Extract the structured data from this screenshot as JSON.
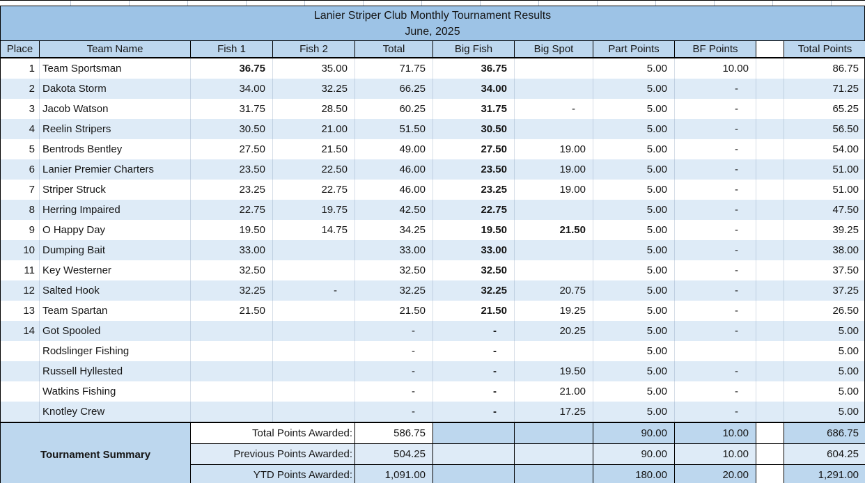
{
  "title": {
    "line1": "Lanier Striper Club Monthly Tournament Results",
    "line2": "June, 2025"
  },
  "columns": [
    "Place",
    "Team Name",
    "Fish 1",
    "Fish 2",
    "Total",
    "Big Fish",
    "Big Spot",
    "Part Points",
    "BF Points",
    "",
    "Total Points"
  ],
  "rows": [
    {
      "place": "1",
      "team": "Team Sportsman",
      "fish1": "36.75",
      "fish1_bold": true,
      "fish2": "35.00",
      "total": "71.75",
      "big_fish": "36.75",
      "big_spot": "",
      "part_points": "5.00",
      "bf_points": "10.00",
      "total_points": "86.75"
    },
    {
      "place": "2",
      "team": "Dakota Storm",
      "fish1": "34.00",
      "fish2": "32.25",
      "total": "66.25",
      "big_fish": "34.00",
      "big_spot": "",
      "part_points": "5.00",
      "bf_points": "-",
      "total_points": "71.25"
    },
    {
      "place": "3",
      "team": "Jacob Watson",
      "fish1": "31.75",
      "fish2": "28.50",
      "total": "60.25",
      "big_fish": "31.75",
      "big_spot": "-",
      "part_points": "5.00",
      "bf_points": "-",
      "total_points": "65.25"
    },
    {
      "place": "4",
      "team": "Reelin Stripers",
      "fish1": "30.50",
      "fish2": "21.00",
      "total": "51.50",
      "big_fish": "30.50",
      "big_spot": "",
      "part_points": "5.00",
      "bf_points": "-",
      "total_points": "56.50"
    },
    {
      "place": "5",
      "team": "Bentrods Bentley",
      "fish1": "27.50",
      "fish2": "21.50",
      "total": "49.00",
      "big_fish": "27.50",
      "big_spot": "19.00",
      "part_points": "5.00",
      "bf_points": "-",
      "total_points": "54.00"
    },
    {
      "place": "6",
      "team": "Lanier Premier Charters",
      "fish1": "23.50",
      "fish2": "22.50",
      "total": "46.00",
      "big_fish": "23.50",
      "big_spot": "19.00",
      "part_points": "5.00",
      "bf_points": "-",
      "total_points": "51.00"
    },
    {
      "place": "7",
      "team": "Striper Struck",
      "fish1": "23.25",
      "fish2": "22.75",
      "total": "46.00",
      "big_fish": "23.25",
      "big_spot": "19.00",
      "part_points": "5.00",
      "bf_points": "-",
      "total_points": "51.00"
    },
    {
      "place": "8",
      "team": "Herring Impaired",
      "fish1": "22.75",
      "fish2": "19.75",
      "total": "42.50",
      "big_fish": "22.75",
      "big_spot": "",
      "part_points": "5.00",
      "bf_points": "-",
      "total_points": "47.50"
    },
    {
      "place": "9",
      "team": "O Happy Day",
      "fish1": "19.50",
      "fish2": "14.75",
      "total": "34.25",
      "big_fish": "19.50",
      "big_spot": "21.50",
      "big_spot_bold": true,
      "part_points": "5.00",
      "bf_points": "-",
      "total_points": "39.25"
    },
    {
      "place": "10",
      "team": "Dumping Bait",
      "fish1": "33.00",
      "fish2": "",
      "total": "33.00",
      "big_fish": "33.00",
      "big_spot": "",
      "part_points": "5.00",
      "bf_points": "-",
      "total_points": "38.00"
    },
    {
      "place": "11",
      "team": "Key Westerner",
      "fish1": "32.50",
      "fish2": "",
      "total": "32.50",
      "big_fish": "32.50",
      "big_spot": "",
      "part_points": "5.00",
      "bf_points": "-",
      "total_points": "37.50"
    },
    {
      "place": "12",
      "team": "Salted Hook",
      "fish1": "32.25",
      "fish2": "-",
      "total": "32.25",
      "big_fish": "32.25",
      "big_spot": "20.75",
      "part_points": "5.00",
      "bf_points": "-",
      "total_points": "37.25"
    },
    {
      "place": "13",
      "team": "Team Spartan",
      "fish1": "21.50",
      "fish2": "",
      "total": "21.50",
      "big_fish": "21.50",
      "big_spot": "19.25",
      "part_points": "5.00",
      "bf_points": "-",
      "total_points": "26.50"
    },
    {
      "place": "14",
      "team": "Got Spooled",
      "fish1": "",
      "fish2": "",
      "total": "-",
      "big_fish": "-",
      "big_spot": "20.25",
      "part_points": "5.00",
      "bf_points": "-",
      "total_points": "5.00"
    },
    {
      "place": "",
      "team": "Rodslinger Fishing",
      "fish1": "",
      "fish2": "",
      "total": "-",
      "big_fish": "-",
      "big_spot": "",
      "part_points": "5.00",
      "bf_points": "",
      "total_points": "5.00"
    },
    {
      "place": "",
      "team": "Russell Hyllested",
      "fish1": "",
      "fish2": "",
      "total": "-",
      "big_fish": "-",
      "big_spot": "19.50",
      "part_points": "5.00",
      "bf_points": "-",
      "total_points": "5.00"
    },
    {
      "place": "",
      "team": "Watkins Fishing",
      "fish1": "",
      "fish2": "",
      "total": "-",
      "big_fish": "-",
      "big_spot": "21.00",
      "part_points": "5.00",
      "bf_points": "-",
      "total_points": "5.00"
    },
    {
      "place": "",
      "team": "Knotley Crew",
      "fish1": "",
      "fish2": "",
      "total": "-",
      "big_fish": "-",
      "big_spot": "17.25",
      "part_points": "5.00",
      "bf_points": "-",
      "total_points": "5.00"
    }
  ],
  "summary": {
    "title": "Tournament Summary",
    "rows": [
      {
        "label": "Total Points Awarded:",
        "value": "586.75",
        "part_points": "90.00",
        "bf_points": "10.00",
        "total_points": "686.75"
      },
      {
        "label": "Previous Points Awarded:",
        "value": "504.25",
        "part_points": "90.00",
        "bf_points": "10.00",
        "total_points": "604.25"
      },
      {
        "label": "YTD Points Awarded:",
        "value": "1,091.00",
        "part_points": "180.00",
        "bf_points": "20.00",
        "total_points": "1,291.00"
      }
    ]
  },
  "colors": {
    "title_bg": "#9DC3E6",
    "header_bg": "#BDD7EE",
    "band_bg": "#DEEBF7",
    "white": "#FFFFFF",
    "summary_dark": "#BDD7EE",
    "summary_light": "#DEEBF7",
    "summary_label_bgs": [
      "#FFFFFF",
      "#DFEBF7",
      "#CFE2F3"
    ],
    "summary_right_bgs": [
      "#BDD7EE",
      "#DEEBF7",
      "#BDD7EE"
    ]
  }
}
